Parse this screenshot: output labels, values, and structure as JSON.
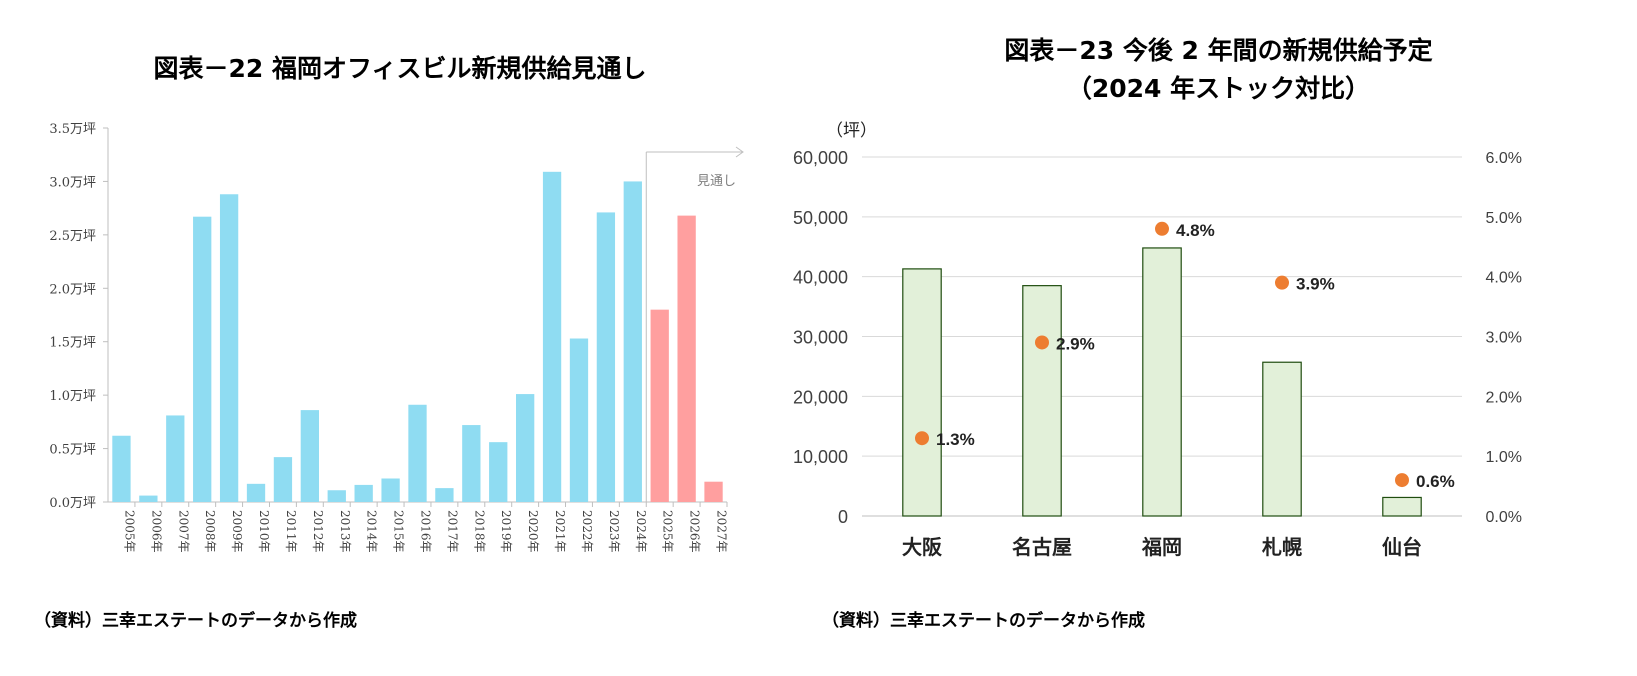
{
  "left": {
    "title": "図表－22  福岡オフィスビル新規供給見通し",
    "source": "（資料）三幸エステートのデータから作成",
    "forecast_label": "見通し",
    "colors": {
      "actual": "#8fdcf2",
      "forecast": "#ff9f9f"
    }
  },
  "right": {
    "title_line1": "図表－23 今後 2 年間の新規供給予定",
    "title_line2": "（2024 年ストック対比）",
    "unit_label": "（坪）",
    "source": "（資料）三幸エステートのデータから作成",
    "colors": {
      "bar_fill": "#e2f0d9",
      "bar_stroke": "#1f4d0f",
      "dot": "#ed7d31"
    }
  },
  "chart_data": [
    {
      "type": "bar",
      "title": "図表－22  福岡オフィスビル新規供給見通し",
      "categories": [
        "2005年",
        "2006年",
        "2007年",
        "2008年",
        "2009年",
        "2010年",
        "2011年",
        "2012年",
        "2013年",
        "2014年",
        "2015年",
        "2016年",
        "2017年",
        "2018年",
        "2019年",
        "2020年",
        "2021年",
        "2022年",
        "2023年",
        "2024年",
        "2025年",
        "2026年",
        "2027年"
      ],
      "values": [
        0.62,
        0.06,
        0.81,
        2.67,
        2.88,
        0.17,
        0.42,
        0.86,
        0.11,
        0.16,
        0.22,
        0.91,
        0.13,
        0.72,
        0.56,
        1.01,
        3.09,
        1.53,
        2.71,
        3.0,
        1.8,
        2.68,
        0.19
      ],
      "forecast_from_index": 20,
      "y_ticks": [
        "0.0万坪",
        "0.5万坪",
        "1.0万坪",
        "1.5万坪",
        "2.0万坪",
        "2.5万坪",
        "3.0万坪",
        "3.5万坪"
      ],
      "ylim": [
        0,
        3.5
      ],
      "annotation": "見通し",
      "grid": false
    },
    {
      "type": "bar",
      "title": "図表－23 今後 2 年間の新規供給予定（2024 年ストック対比）",
      "categories": [
        "大阪",
        "名古屋",
        "福岡",
        "札幌",
        "仙台"
      ],
      "series": [
        {
          "values": [
            41300,
            38500,
            44800,
            25700,
            3100
          ],
          "axis": "left",
          "kind": "bar"
        },
        {
          "values": [
            1.3,
            2.9,
            4.8,
            3.9,
            0.6
          ],
          "axis": "right",
          "kind": "scatter",
          "labels": [
            "1.3%",
            "2.9%",
            "4.8%",
            "3.9%",
            "0.6%"
          ]
        }
      ],
      "ylabel": "（坪）",
      "ylim": [
        0,
        60000
      ],
      "y_ticks": [
        "0",
        "10,000",
        "20,000",
        "30,000",
        "40,000",
        "50,000",
        "60,000"
      ],
      "y2lim": [
        0,
        6.0
      ],
      "y2_ticks": [
        "0.0%",
        "1.0%",
        "2.0%",
        "3.0%",
        "4.0%",
        "5.0%",
        "6.0%"
      ],
      "grid": true
    }
  ]
}
